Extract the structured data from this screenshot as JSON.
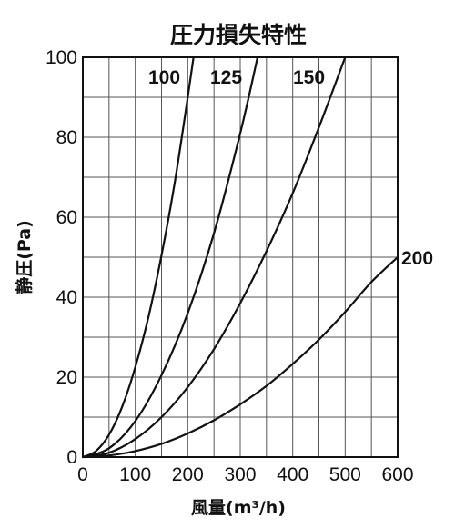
{
  "chart_data": {
    "type": "line",
    "title": "圧力損失特性",
    "xlabel": "風量(m³/h)",
    "ylabel": "静圧(Pa)",
    "xlim": [
      0,
      600
    ],
    "ylim": [
      0,
      100
    ],
    "x_ticks": [
      0,
      100,
      200,
      300,
      400,
      500,
      600
    ],
    "y_ticks": [
      0,
      20,
      40,
      60,
      80,
      100
    ],
    "x_tick_labels": [
      "0",
      "100",
      "200",
      "300",
      "400",
      "500",
      "600"
    ],
    "y_tick_labels": [
      "0",
      "20",
      "40",
      "60",
      "80",
      "100"
    ],
    "grid": true,
    "series": [
      {
        "name": "100",
        "x": [
          0,
          25,
          50,
          75,
          100,
          125,
          150,
          175,
          200,
          211
        ],
        "y": [
          0,
          1.5,
          5.6,
          12.6,
          22.5,
          35,
          50.5,
          68.5,
          90,
          100
        ]
      },
      {
        "name": "125",
        "x": [
          0,
          50,
          100,
          150,
          200,
          250,
          300,
          333
        ],
        "y": [
          0,
          2.2,
          9,
          20.5,
          36,
          56,
          81,
          100
        ]
      },
      {
        "name": "150",
        "x": [
          0,
          50,
          100,
          150,
          200,
          250,
          300,
          350,
          400,
          450,
          500
        ],
        "y": [
          0,
          1.1,
          4.5,
          10,
          17.5,
          27,
          38.5,
          51.5,
          66,
          82.5,
          100
        ]
      },
      {
        "name": "200",
        "x": [
          0,
          50,
          100,
          150,
          200,
          250,
          300,
          350,
          400,
          450,
          500,
          550,
          600
        ],
        "y": [
          0,
          0.4,
          1.5,
          3.3,
          5.9,
          9.2,
          13.2,
          17.8,
          23.3,
          29.4,
          36.3,
          43.8,
          50
        ]
      }
    ]
  }
}
